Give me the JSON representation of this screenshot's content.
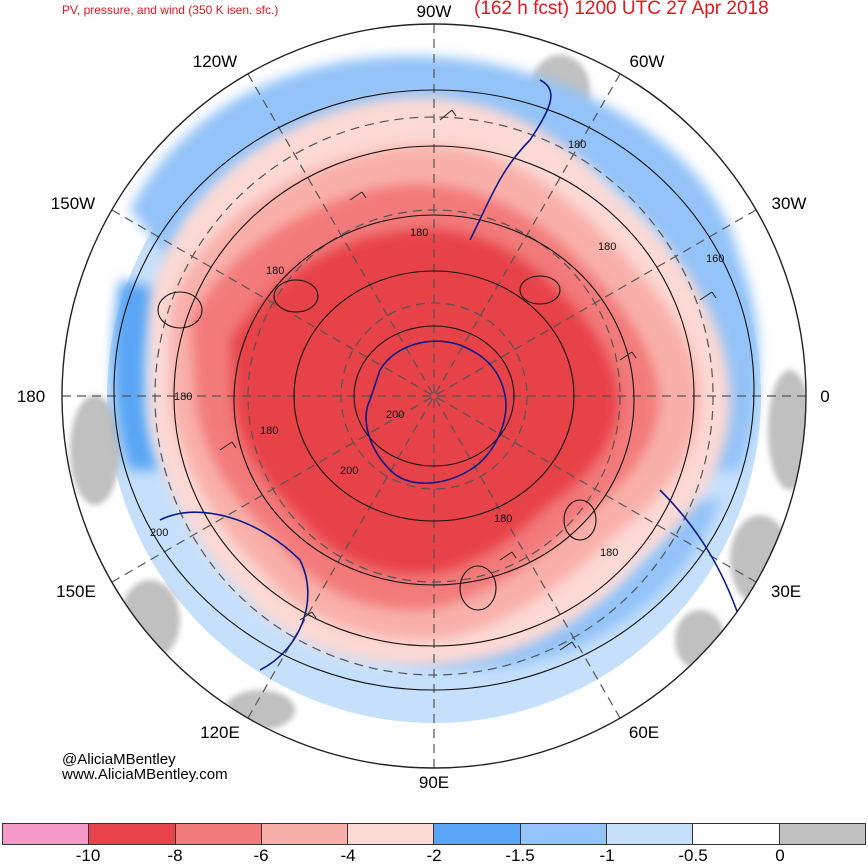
{
  "header": {
    "title_left": "PV, pressure, and wind (350 K isen. sfc.)",
    "title_right": "(162 h fcst) 1200 UTC 27 Apr 2018"
  },
  "map": {
    "projection": "south-polar-stereographic",
    "longitude_labels": {
      "lon_90w": "90W",
      "lon_120w": "120W",
      "lon_60w": "60W",
      "lon_150w": "150W",
      "lon_30w": "30W",
      "lon_180": "180",
      "lon_0": "0",
      "lon_150e": "150E",
      "lon_30e": "30E",
      "lon_120e": "120E",
      "lon_60e": "60E",
      "lon_90e": "90E"
    },
    "contour_labels": [
      "180",
      "180",
      "180",
      "160",
      "180",
      "180",
      "200",
      "180",
      "200",
      "180",
      "180",
      "200"
    ],
    "colors": {
      "strong_negative": "#e8434a",
      "negative": "#f37a7a",
      "moderate_negative": "#f9b0aa",
      "weak_negative": "#fcd9d4",
      "blue_dark": "#5aa5f5",
      "blue_mid": "#93c3f8",
      "blue_light": "#c6e0fb",
      "neutral": "#ffffff",
      "gray": "#c0c0c0",
      "coastline": "#0a1a8c"
    }
  },
  "credits": {
    "handle": "@AliciaMBentley",
    "website": "www.AliciaMBentley.com"
  },
  "colorbar": {
    "colors": [
      "#f49ac8",
      "#e8434a",
      "#f37a7a",
      "#f9b0aa",
      "#fcd9d4",
      "#5aa5f5",
      "#93c3f8",
      "#c6e0fb",
      "#ffffff",
      "#c0c0c0"
    ],
    "labels": [
      "-10",
      "-8",
      "-6",
      "-4",
      "-2",
      "-1.5",
      "-1",
      "-0.5",
      "0"
    ]
  }
}
